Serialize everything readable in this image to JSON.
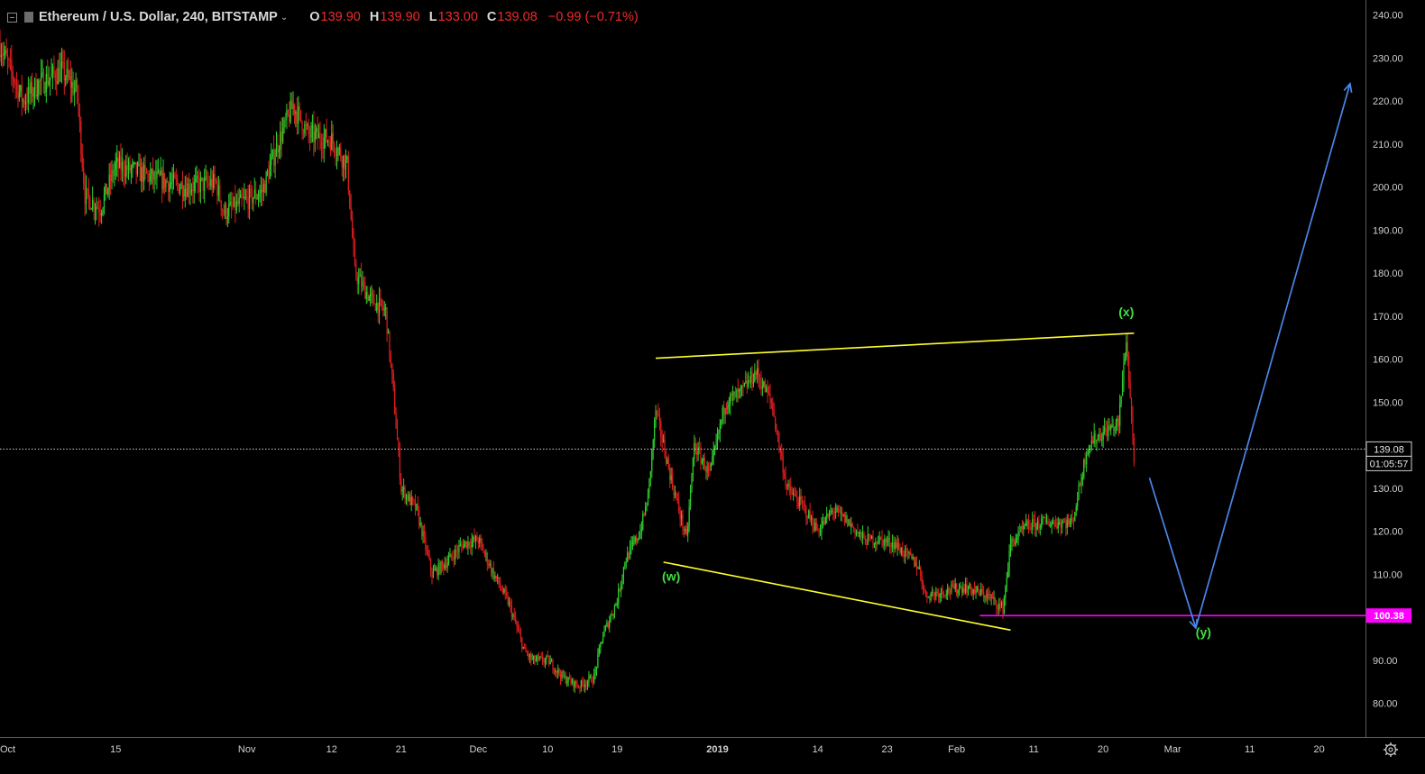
{
  "header": {
    "symbol": "Ethereum / U.S. Dollar, 240, BITSTAMP",
    "chevron": "⌄",
    "o_label": "O",
    "o_value": "139.90",
    "h_label": "H",
    "h_value": "139.90",
    "l_label": "L",
    "l_value": "133.00",
    "c_label": "C",
    "c_value": "139.08",
    "change": "−0.99 (−0.71%)"
  },
  "colors": {
    "background": "#000000",
    "up": "#2ed32e",
    "down": "#e01e1e",
    "trendline": "#ffff2e",
    "projection": "#4a86e8",
    "support": "#ff00ff",
    "wave_label": "#3fe03f",
    "axis_text": "#d0d0d0",
    "price_tag_bg": "#000000"
  },
  "icons": {
    "collapse": "collapse-square-icon",
    "settings": "gear-icon"
  },
  "chart_data": {
    "type": "candlestick",
    "interval": "240",
    "ylim": [
      75,
      243
    ],
    "y_ticks": [
      "240.00",
      "230.00",
      "220.00",
      "210.00",
      "200.00",
      "190.00",
      "180.00",
      "170.00",
      "160.00",
      "150.00",
      "140.00",
      "130.00",
      "120.00",
      "110.00",
      "100.00",
      "90.00",
      "80.00"
    ],
    "x_ticks": [
      {
        "label": "Oct",
        "date": "2018-10-01"
      },
      {
        "label": "15",
        "date": "2018-10-15"
      },
      {
        "label": "Nov",
        "date": "2018-11-01"
      },
      {
        "label": "12",
        "date": "2018-11-12"
      },
      {
        "label": "21",
        "date": "2018-11-21"
      },
      {
        "label": "Dec",
        "date": "2018-12-01"
      },
      {
        "label": "10",
        "date": "2018-12-10"
      },
      {
        "label": "19",
        "date": "2018-12-19"
      },
      {
        "label": "2019",
        "date": "2019-01-01"
      },
      {
        "label": "14",
        "date": "2019-01-14"
      },
      {
        "label": "23",
        "date": "2019-01-23"
      },
      {
        "label": "Feb",
        "date": "2019-02-01"
      },
      {
        "label": "11",
        "date": "2019-02-11"
      },
      {
        "label": "20",
        "date": "2019-02-20"
      },
      {
        "label": "Mar",
        "date": "2019-03-01"
      },
      {
        "label": "11",
        "date": "2019-03-11"
      },
      {
        "label": "20",
        "date": "2019-03-20"
      }
    ],
    "x_range": [
      "2018-09-30",
      "2019-03-26"
    ],
    "price_path": [
      [
        "2018-09-30",
        233
      ],
      [
        "2018-10-03",
        220
      ],
      [
        "2018-10-05",
        224
      ],
      [
        "2018-10-08",
        227
      ],
      [
        "2018-10-10",
        222
      ],
      [
        "2018-10-11",
        198
      ],
      [
        "2018-10-13",
        195
      ],
      [
        "2018-10-15",
        205
      ],
      [
        "2018-10-17",
        204
      ],
      [
        "2018-10-20",
        202
      ],
      [
        "2018-10-24",
        200
      ],
      [
        "2018-10-28",
        201
      ],
      [
        "2018-10-29",
        194
      ],
      [
        "2018-11-01",
        197
      ],
      [
        "2018-11-03",
        199
      ],
      [
        "2018-11-05",
        210
      ],
      [
        "2018-11-07",
        219
      ],
      [
        "2018-11-09",
        212
      ],
      [
        "2018-11-12",
        211
      ],
      [
        "2018-11-14",
        205
      ],
      [
        "2018-11-15",
        180
      ],
      [
        "2018-11-17",
        174
      ],
      [
        "2018-11-19",
        171
      ],
      [
        "2018-11-20",
        152
      ],
      [
        "2018-11-21",
        130
      ],
      [
        "2018-11-23",
        125
      ],
      [
        "2018-11-25",
        110
      ],
      [
        "2018-11-27",
        113
      ],
      [
        "2018-11-29",
        117
      ],
      [
        "2018-12-01",
        118
      ],
      [
        "2018-12-03",
        110
      ],
      [
        "2018-12-05",
        103
      ],
      [
        "2018-12-07",
        92
      ],
      [
        "2018-12-08",
        90
      ],
      [
        "2018-12-10",
        90
      ],
      [
        "2018-12-12",
        86
      ],
      [
        "2018-12-14",
        84
      ],
      [
        "2018-12-16",
        86
      ],
      [
        "2018-12-17",
        95
      ],
      [
        "2018-12-19",
        104
      ],
      [
        "2018-12-20",
        113
      ],
      [
        "2018-12-22",
        120
      ],
      [
        "2018-12-23",
        128
      ],
      [
        "2018-12-24",
        148
      ],
      [
        "2018-12-26",
        132
      ],
      [
        "2018-12-28",
        118
      ],
      [
        "2018-12-29",
        140
      ],
      [
        "2018-12-31",
        133
      ],
      [
        "2019-01-02",
        150
      ],
      [
        "2019-01-04",
        152
      ],
      [
        "2019-01-06",
        157
      ],
      [
        "2019-01-08",
        150
      ],
      [
        "2019-01-10",
        130
      ],
      [
        "2019-01-12",
        126
      ],
      [
        "2019-01-14",
        120
      ],
      [
        "2019-01-16",
        125
      ],
      [
        "2019-01-18",
        122
      ],
      [
        "2019-01-20",
        118
      ],
      [
        "2019-01-22",
        118
      ],
      [
        "2019-01-24",
        117
      ],
      [
        "2019-01-27",
        112
      ],
      [
        "2019-01-28",
        105
      ],
      [
        "2019-01-30",
        106
      ],
      [
        "2019-02-02",
        107
      ],
      [
        "2019-02-05",
        105
      ],
      [
        "2019-02-07",
        102
      ],
      [
        "2019-02-08",
        117
      ],
      [
        "2019-02-10",
        121
      ],
      [
        "2019-02-12",
        122
      ],
      [
        "2019-02-14",
        122
      ],
      [
        "2019-02-16",
        122
      ],
      [
        "2019-02-18",
        140
      ],
      [
        "2019-02-20",
        143
      ],
      [
        "2019-02-22",
        145
      ],
      [
        "2019-02-23",
        165
      ],
      [
        "2019-02-24",
        137
      ]
    ],
    "last_price": "139.08",
    "countdown": "01:05:57",
    "support_level": {
      "value": 100.38,
      "label": "100.38",
      "from": "2019-02-04"
    },
    "trendlines": [
      {
        "name": "upper",
        "from": [
          "2018-12-24",
          160.2
        ],
        "to": [
          "2019-02-24",
          166
        ]
      },
      {
        "name": "lower",
        "from": [
          "2018-12-25",
          112.8
        ],
        "to": [
          "2019-02-08",
          97
        ]
      }
    ],
    "projection": [
      [
        "2019-02-26",
        132.4
      ],
      [
        "2019-03-04",
        97.5
      ],
      [
        "2019-03-24",
        224
      ]
    ],
    "wave_labels": [
      {
        "text": "(w)",
        "date": "2018-12-26",
        "price": 108.5
      },
      {
        "text": "(x)",
        "date": "2019-02-23",
        "price": 170
      },
      {
        "text": "(y)",
        "date": "2019-03-05",
        "price": 95.5
      }
    ]
  }
}
